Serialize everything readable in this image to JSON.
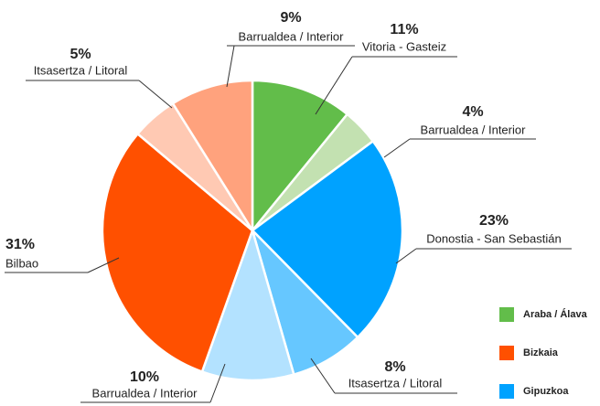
{
  "chart_data": {
    "type": "pie",
    "categories": [
      "Vitoria - Gasteiz",
      "Barrualdea / Interior",
      "Donostia - San Sebastián",
      "Itsasertza / Litoral",
      "Barrualdea / Interior",
      "Bilbao",
      "Itsasertza / Litoral",
      "Barrualdea / Interior"
    ],
    "values": [
      11,
      4,
      23,
      8,
      10,
      31,
      5,
      9
    ],
    "value_labels": [
      "11%",
      "4%",
      "23%",
      "8%",
      "10%",
      "31%",
      "5%",
      "9%"
    ],
    "colors": [
      "#62bd4a",
      "#c3e1b1",
      "#00a2ff",
      "#66c7ff",
      "#b3e2ff",
      "#ff5000",
      "#ffc9b3",
      "#ffa27d"
    ],
    "legend": [
      {
        "name": "Araba / Álava",
        "color": "#62bd4a"
      },
      {
        "name": "Bizkaia",
        "color": "#ff5000"
      },
      {
        "name": "Gipuzkoa",
        "color": "#00a2ff"
      }
    ],
    "legend_position": "lower right"
  }
}
